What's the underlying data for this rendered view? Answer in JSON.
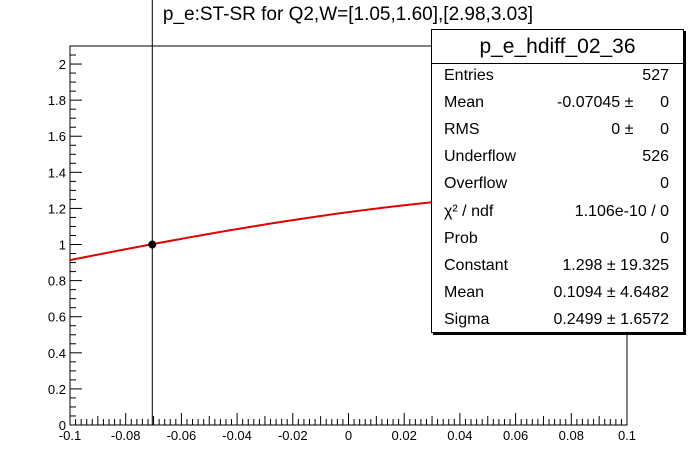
{
  "title": "p_e:ST-SR for Q2,W=[1.05,1.60],[2.98,3.03]",
  "stats": {
    "name": "p_e_hdiff_02_36",
    "rows": [
      {
        "label": "Entries",
        "value": "527"
      },
      {
        "label": "Mean",
        "value": "-0.07045 ±      0"
      },
      {
        "label": "RMS",
        "value": "0 ±      0"
      },
      {
        "label": "Underflow",
        "value": "526"
      },
      {
        "label": "Overflow",
        "value": "0"
      },
      {
        "label": "χ² / ndf",
        "value": "1.106e-10 / 0"
      },
      {
        "label": "Prob",
        "value": "0"
      },
      {
        "label": "Constant",
        "value": "1.298 ± 19.325"
      },
      {
        "label": "Mean",
        "value": "0.1094 ± 4.6482"
      },
      {
        "label": "Sigma",
        "value": "0.2499 ± 1.6572"
      }
    ]
  },
  "colors": {
    "fit": "#e00000",
    "marker": "#000000",
    "axis": "#000000"
  },
  "chart_data": {
    "type": "scatter",
    "title": "p_e:ST-SR for Q2,W=[1.05,1.60],[2.98,3.03]",
    "xlabel": "",
    "ylabel": "",
    "xlim": [
      -0.1,
      0.1
    ],
    "ylim": [
      0,
      2.1
    ],
    "xticks": [
      "-0.1",
      "-0.08",
      "-0.06",
      "-0.04",
      "-0.02",
      "0",
      "0.02",
      "0.04",
      "0.06",
      "0.08",
      "0.1"
    ],
    "yticks": [
      "0",
      "0.2",
      "0.4",
      "0.6",
      "0.8",
      "1",
      "1.2",
      "1.4",
      "1.6",
      "1.8",
      "2"
    ],
    "grid": false,
    "points": [
      {
        "x": -0.07045,
        "y": 1.0,
        "y_err_low": 0,
        "y_err_high": 2.0
      }
    ],
    "fit": {
      "function": "gaus",
      "constant": 1.298,
      "mean": 0.1094,
      "sigma": 0.2499
    }
  }
}
